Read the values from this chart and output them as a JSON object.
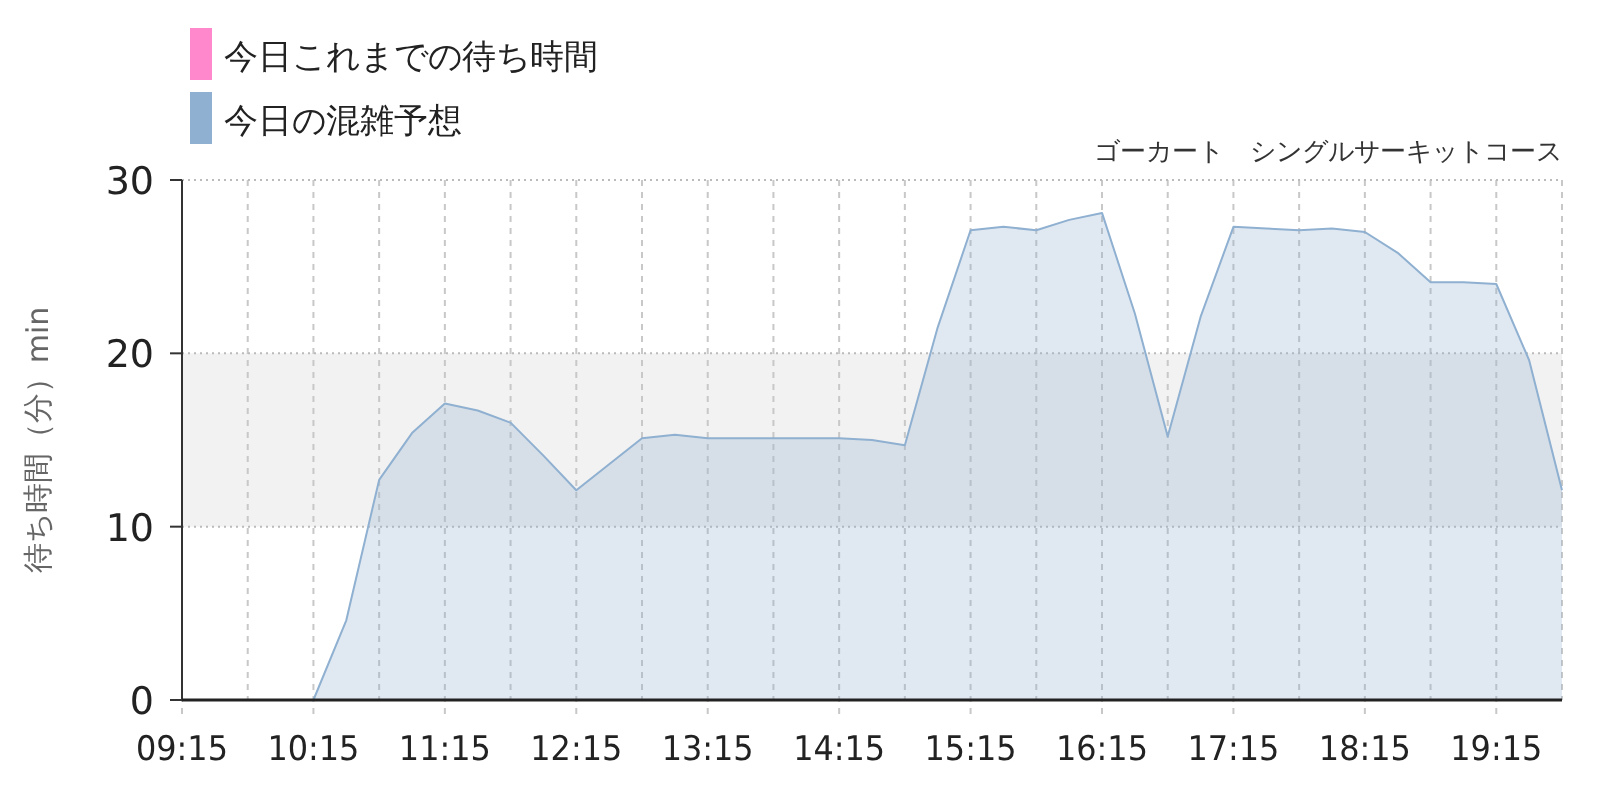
{
  "chart_data": {
    "type": "area",
    "title": "ゴーカート　シングルサーキットコース",
    "ylabel": "待ち時間（分）min",
    "x": [
      9.25,
      9.5,
      9.75,
      10.0,
      10.25,
      10.5,
      10.75,
      11.0,
      11.25,
      11.5,
      11.75,
      12.0,
      12.25,
      12.5,
      12.75,
      13.0,
      13.25,
      13.5,
      13.75,
      14.0,
      14.25,
      14.5,
      14.75,
      15.0,
      15.25,
      15.5,
      15.75,
      16.0,
      16.25,
      16.5,
      16.75,
      17.0,
      17.25,
      17.5,
      17.75,
      18.0,
      18.25,
      18.5,
      18.75,
      19.0,
      19.25,
      19.5,
      19.75
    ],
    "series": [
      {
        "name": "今日これまでの待ち時間",
        "color": "#ff88cc",
        "values": [
          null,
          null,
          null,
          null,
          null,
          null,
          null,
          null,
          null,
          null,
          null,
          null,
          null,
          null,
          null,
          null,
          null,
          null,
          null,
          null,
          null,
          null,
          null,
          null,
          null,
          null,
          null,
          null,
          null,
          null,
          null,
          null,
          null,
          null,
          null,
          null,
          null,
          null,
          null,
          null,
          null,
          null,
          null
        ]
      },
      {
        "name": "今日の混雑予想",
        "color": "#8fb0d0",
        "values": [
          0,
          0,
          0,
          0,
          0,
          4.6,
          12.7,
          15.4,
          17.1,
          16.7,
          16.0,
          14.1,
          12.1,
          13.6,
          15.1,
          15.3,
          15.1,
          15.1,
          15.1,
          15.1,
          15.1,
          15.0,
          14.7,
          21.5,
          27.1,
          27.3,
          27.1,
          27.7,
          28.1,
          22.3,
          15.2,
          22.1,
          27.3,
          27.2,
          27.1,
          27.2,
          27.0,
          25.8,
          24.1,
          24.1,
          24.0,
          19.6,
          12.1
        ]
      }
    ],
    "xlim": [
      9.25,
      19.75
    ],
    "xticks": [
      {
        "value": 9.25,
        "label": "09:15"
      },
      {
        "value": 9.75,
        "label": null
      },
      {
        "value": 10.25,
        "label": "10:15"
      },
      {
        "value": 10.75,
        "label": null
      },
      {
        "value": 11.25,
        "label": "11:15"
      },
      {
        "value": 11.75,
        "label": null
      },
      {
        "value": 12.25,
        "label": "12:15"
      },
      {
        "value": 12.75,
        "label": null
      },
      {
        "value": 13.25,
        "label": "13:15"
      },
      {
        "value": 13.75,
        "label": null
      },
      {
        "value": 14.25,
        "label": "14:15"
      },
      {
        "value": 14.75,
        "label": null
      },
      {
        "value": 15.25,
        "label": "15:15"
      },
      {
        "value": 15.75,
        "label": null
      },
      {
        "value": 16.25,
        "label": "16:15"
      },
      {
        "value": 16.75,
        "label": null
      },
      {
        "value": 17.25,
        "label": "17:15"
      },
      {
        "value": 17.75,
        "label": null
      },
      {
        "value": 18.25,
        "label": "18:15"
      },
      {
        "value": 18.75,
        "label": null
      },
      {
        "value": 19.25,
        "label": "19:15"
      },
      {
        "value": 19.75,
        "label": null
      }
    ],
    "ylim": [
      0,
      30
    ],
    "yticks": [
      0,
      10,
      20,
      30
    ],
    "bands": [
      {
        "axis": "y",
        "from": 10,
        "to": 20,
        "color": "#f2f2f2"
      }
    ],
    "grid": true,
    "legend": "top left"
  }
}
